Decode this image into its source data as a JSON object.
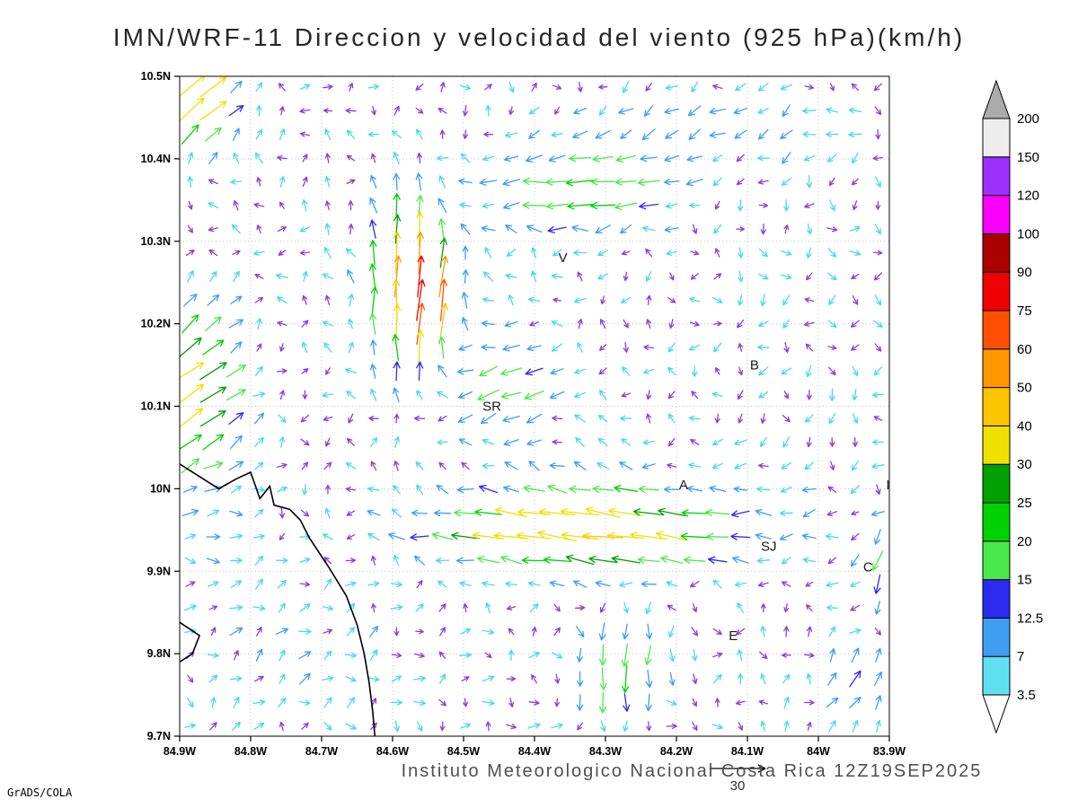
{
  "title": "IMN/WRF-11 Direccion y velocidad del viento (925 hPa)(km/h)",
  "caption": "Instituto Meteorologico Nacional Costa Rica 12Z19SEP2025",
  "credit": "GrADS/COLA",
  "vector_key_value": "30",
  "axes": {
    "lat_labels": [
      "10.5N",
      "10.4N",
      "10.3N",
      "10.2N",
      "10.1N",
      "10N",
      "9.9N",
      "9.8N",
      "9.7N"
    ],
    "lon_labels": [
      "84.9W",
      "84.8W",
      "84.7W",
      "84.6W",
      "84.5W",
      "84.4W",
      "84.3W",
      "84.2W",
      "84.1W",
      "84W",
      "83.9W"
    ],
    "lat_start": 10.5,
    "lat_end": 9.7,
    "lon_start": -84.9,
    "lon_end": -83.9
  },
  "stations": [
    {
      "label": "V",
      "lon": -84.36,
      "lat": 10.28
    },
    {
      "label": "B",
      "lon": -84.09,
      "lat": 10.15
    },
    {
      "label": "SR",
      "lon": -84.46,
      "lat": 10.1
    },
    {
      "label": "A",
      "lon": -84.19,
      "lat": 10.005
    },
    {
      "label": "SJ",
      "lon": -84.07,
      "lat": 9.93
    },
    {
      "label": "C",
      "lon": -83.93,
      "lat": 9.905
    },
    {
      "label": "E",
      "lon": -84.12,
      "lat": 9.822
    },
    {
      "label": "I",
      "lon": -83.902,
      "lat": 10.005
    }
  ],
  "colorbar": {
    "labels_top_to_bottom": [
      "200",
      "150",
      "120",
      "100",
      "90",
      "75",
      "60",
      "50",
      "40",
      "30",
      "25",
      "20",
      "15",
      "12.5",
      "7",
      "3.5"
    ],
    "segment_colors_bottom_to_top": [
      "#5fe0f0",
      "#3f9df2",
      "#2b2bf0",
      "#4ae84a",
      "#00d200",
      "#00a000",
      "#f0e000",
      "#ffc400",
      "#ff9600",
      "#ff5000",
      "#f00000",
      "#aa0000",
      "#fa00fa",
      "#9b30ff",
      "#ededed"
    ],
    "below_min_color": "#ffffff",
    "above_max_color": "#ababab"
  },
  "chart_data": {
    "type": "vector_field",
    "variable": "Direccion y velocidad del viento",
    "level": "925 hPa",
    "units": "km/h",
    "model": "IMN/WRF-11",
    "valid_time": "12Z19SEP2025",
    "speed_levels": [
      3.5,
      7,
      12.5,
      15,
      20,
      25,
      30,
      40,
      50,
      60,
      75,
      90,
      100,
      120,
      150,
      200
    ],
    "arrow_colors": [
      "#8a3fd8",
      "#49d8ee",
      "#3f9df2",
      "#2b2bf0",
      "#4ae84a",
      "#00d200",
      "#00a000",
      "#f0e000",
      "#ffc400",
      "#ff9600",
      "#ff5000",
      "#f00000",
      "#aa0000",
      "#fa00fa",
      "#9b30ff",
      "#e8e8e8",
      "#ababab"
    ],
    "grid": {
      "cols": 31,
      "rows": 28,
      "lon_start": -84.885,
      "lon_step": 0.0323,
      "lat_start": 10.487,
      "lat_step": 0.0287
    },
    "flow_features": [
      {
        "lon": -84.88,
        "lat": 10.47,
        "u": 34,
        "v": 26,
        "rx": 0.06,
        "ry": 0.05
      },
      {
        "lon": -84.88,
        "lat": 10.12,
        "u": 27,
        "v": 21,
        "rx": 0.07,
        "ry": 0.12
      },
      {
        "lon": -84.58,
        "lat": 10.25,
        "u": 4,
        "v": 50,
        "rx": 0.05,
        "ry": 0.09
      },
      {
        "lon": -84.545,
        "lat": 10.23,
        "u": 14,
        "v": 64,
        "rx": 0.028,
        "ry": 0.05
      },
      {
        "lon": -84.33,
        "lat": 10.36,
        "u": -22,
        "v": -2,
        "rx": 0.14,
        "ry": 0.05
      },
      {
        "lon": -84.33,
        "lat": 9.95,
        "u": -40,
        "v": 3,
        "rx": 0.22,
        "ry": 0.05
      },
      {
        "lon": -84.45,
        "lat": 10.12,
        "u": -15,
        "v": -10,
        "rx": 0.08,
        "ry": 0.06
      },
      {
        "lon": -84.28,
        "lat": 9.78,
        "u": -2,
        "v": -24,
        "rx": 0.07,
        "ry": 0.07
      },
      {
        "lon": -83.95,
        "lat": 9.77,
        "u": 10,
        "v": 14,
        "rx": 0.05,
        "ry": 0.05
      },
      {
        "lon": -83.91,
        "lat": 9.9,
        "u": -4,
        "v": -16,
        "rx": 0.03,
        "ry": 0.05
      },
      {
        "lon": -84.15,
        "lat": 10.44,
        "u": -10,
        "v": -2,
        "rx": 0.25,
        "ry": 0.06
      },
      {
        "lon": -84.75,
        "lat": 9.8,
        "u": 3,
        "v": 6,
        "rx": 0.15,
        "ry": 0.12
      }
    ],
    "background": {
      "jitter_min": 1.2,
      "jitter_span": 2.9,
      "swirl_amp": 2.2
    },
    "coastlines": [
      [
        [
          -84.9,
          10.03
        ],
        [
          -84.845,
          10.0
        ],
        [
          -84.82,
          10.012
        ],
        [
          -84.8,
          10.02
        ],
        [
          -84.787,
          9.988
        ],
        [
          -84.773,
          10.003
        ],
        [
          -84.767,
          9.98
        ],
        [
          -84.745,
          9.975
        ],
        [
          -84.73,
          9.962
        ],
        [
          -84.717,
          9.94
        ],
        [
          -84.69,
          9.905
        ],
        [
          -84.665,
          9.87
        ],
        [
          -84.65,
          9.835
        ],
        [
          -84.64,
          9.8
        ],
        [
          -84.633,
          9.765
        ],
        [
          -84.628,
          9.73
        ],
        [
          -84.625,
          9.7
        ]
      ],
      [
        [
          -84.9,
          9.838
        ],
        [
          -84.872,
          9.822
        ],
        [
          -84.882,
          9.8
        ],
        [
          -84.9,
          9.79
        ]
      ]
    ]
  }
}
